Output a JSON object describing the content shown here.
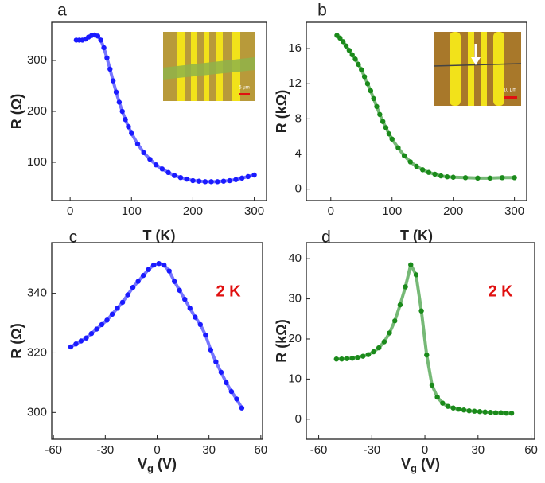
{
  "chart_data": [
    {
      "type": "scatter",
      "panel": "a",
      "color": "#1a1aff",
      "x_label": [
        "T (K)"
      ],
      "y_label": "R (Ω)",
      "inset_scale": "5 μm",
      "xlim": [
        -30,
        320
      ],
      "ylim": [
        25,
        375
      ],
      "xticks": [
        0,
        100,
        200,
        300
      ],
      "yticks": [
        100,
        200,
        300
      ],
      "x": [
        10,
        15,
        20,
        25,
        30,
        35,
        40,
        45,
        50,
        55,
        60,
        65,
        70,
        75,
        80,
        85,
        90,
        95,
        100,
        110,
        120,
        130,
        140,
        150,
        160,
        170,
        180,
        190,
        200,
        210,
        220,
        230,
        240,
        250,
        260,
        270,
        280,
        290,
        300
      ],
      "values": [
        340,
        340,
        340,
        342,
        346,
        349,
        350,
        348,
        340,
        325,
        305,
        283,
        260,
        238,
        218,
        200,
        184,
        170,
        157,
        136,
        119,
        106,
        95,
        87,
        80,
        74,
        70,
        67,
        64,
        63,
        62,
        62,
        62,
        63,
        64,
        66,
        69,
        72,
        75
      ]
    },
    {
      "type": "scatter",
      "panel": "b",
      "color": "#1a8a1a",
      "x_label": [
        "T (K)"
      ],
      "y_label": "R (kΩ)",
      "inset_scale": "10 μm",
      "xlim": [
        -40,
        320
      ],
      "ylim": [
        -1.3,
        19
      ],
      "xticks": [
        0,
        100,
        200,
        300
      ],
      "yticks": [
        0,
        4,
        8,
        12,
        16
      ],
      "x": [
        10,
        15,
        20,
        25,
        30,
        35,
        40,
        45,
        50,
        55,
        60,
        65,
        70,
        75,
        80,
        85,
        90,
        95,
        100,
        110,
        120,
        130,
        140,
        150,
        160,
        170,
        180,
        190,
        200,
        220,
        240,
        260,
        280,
        300
      ],
      "values": [
        17.5,
        17.2,
        16.8,
        16.3,
        15.8,
        15.3,
        14.8,
        14.2,
        13.6,
        12.8,
        12,
        11.2,
        10.3,
        9.4,
        8.5,
        7.7,
        7,
        6.3,
        5.7,
        4.7,
        3.8,
        3.1,
        2.6,
        2.2,
        1.9,
        1.7,
        1.5,
        1.4,
        1.35,
        1.3,
        1.25,
        1.25,
        1.3,
        1.3
      ]
    },
    {
      "type": "scatter",
      "panel": "c",
      "color": "#1a1aff",
      "annotation": "2 K",
      "x_label": [
        "V",
        "g",
        " (V)"
      ],
      "y_label": "R (Ω)",
      "xlim": [
        -61,
        61
      ],
      "ylim": [
        291,
        357
      ],
      "xticks": [
        -60,
        -30,
        0,
        30,
        60
      ],
      "yticks": [
        300,
        320,
        340
      ],
      "x": [
        -50,
        -47,
        -44,
        -41,
        -38,
        -35,
        -32,
        -29,
        -26,
        -23,
        -20,
        -17,
        -14,
        -11,
        -8,
        -5,
        -2,
        1,
        4,
        7,
        10,
        13,
        16,
        19,
        22,
        25,
        28,
        31,
        34,
        37,
        40,
        43,
        46,
        49
      ],
      "values": [
        322,
        323,
        324,
        325,
        326.5,
        328,
        329.5,
        331,
        333,
        335,
        337,
        339.5,
        342,
        344,
        346,
        348,
        349.5,
        350,
        349.5,
        347.5,
        344,
        341,
        338,
        335,
        332,
        329.5,
        326,
        321,
        317,
        313.5,
        310,
        307,
        304.5,
        301.5
      ]
    },
    {
      "type": "scatter",
      "panel": "d",
      "color": "#1a8a1a",
      "annotation": "2 K",
      "x_label": [
        "V",
        "g",
        " (V)"
      ],
      "y_label": "R (kΩ)",
      "xlim": [
        -67,
        62
      ],
      "ylim": [
        -5,
        44
      ],
      "xticks": [
        -60,
        -30,
        0,
        30,
        60
      ],
      "yticks": [
        0,
        10,
        20,
        30,
        40
      ],
      "x": [
        -50,
        -47,
        -44,
        -41,
        -38,
        -35,
        -32,
        -29,
        -26,
        -23,
        -20,
        -17,
        -14,
        -11,
        -8,
        -5,
        -2,
        1,
        4,
        7,
        10,
        13,
        16,
        19,
        22,
        25,
        28,
        31,
        34,
        37,
        40,
        43,
        46,
        49
      ],
      "values": [
        15,
        15,
        15.1,
        15.2,
        15.4,
        15.7,
        16.1,
        16.8,
        17.8,
        19.3,
        21.5,
        24.5,
        28.5,
        33,
        38.5,
        36,
        27,
        16,
        8.5,
        5.5,
        4,
        3.2,
        2.8,
        2.5,
        2.3,
        2.1,
        2,
        1.9,
        1.8,
        1.7,
        1.6,
        1.6,
        1.5,
        1.5
      ]
    }
  ]
}
